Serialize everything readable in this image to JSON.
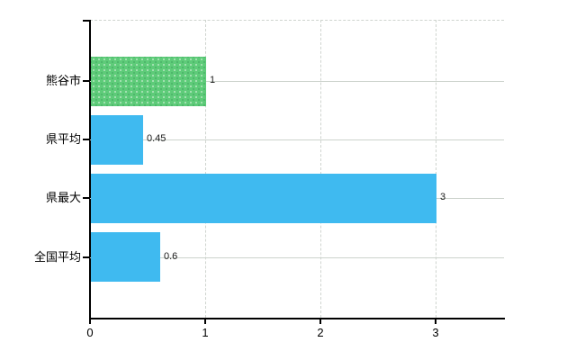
{
  "chart": {
    "background_color": "#ffffff",
    "axis_color": "#000000",
    "vertical_grid_color": "#cfd4cf",
    "horizontal_grid_color": "#ccd3cc",
    "value_label_color": "#1a1a1a",
    "tick_label_color": "#000000"
  },
  "chart_data": {
    "type": "bar",
    "orientation": "horizontal",
    "title": "",
    "xlabel": "",
    "ylabel": "",
    "categories": [
      "熊谷市",
      "県平均",
      "県最大",
      "全国平均"
    ],
    "values": [
      1,
      0.45,
      3,
      0.6
    ],
    "value_labels": [
      "1",
      "0.45",
      "3",
      "0.6"
    ],
    "bar_colors": [
      "#5ecb79",
      "#3fbaf0",
      "#3fbaf0",
      "#3fbaf0"
    ],
    "bar_textured": [
      true,
      false,
      false,
      false
    ],
    "x_ticks": [
      0,
      1,
      2,
      3
    ],
    "x_tick_labels": [
      "0",
      "1",
      "2",
      "3"
    ],
    "xlim": [
      0,
      3.6
    ],
    "grid": {
      "vertical": "dashed",
      "horizontal": "solid",
      "top_border": "dashed"
    },
    "legend": "none"
  }
}
